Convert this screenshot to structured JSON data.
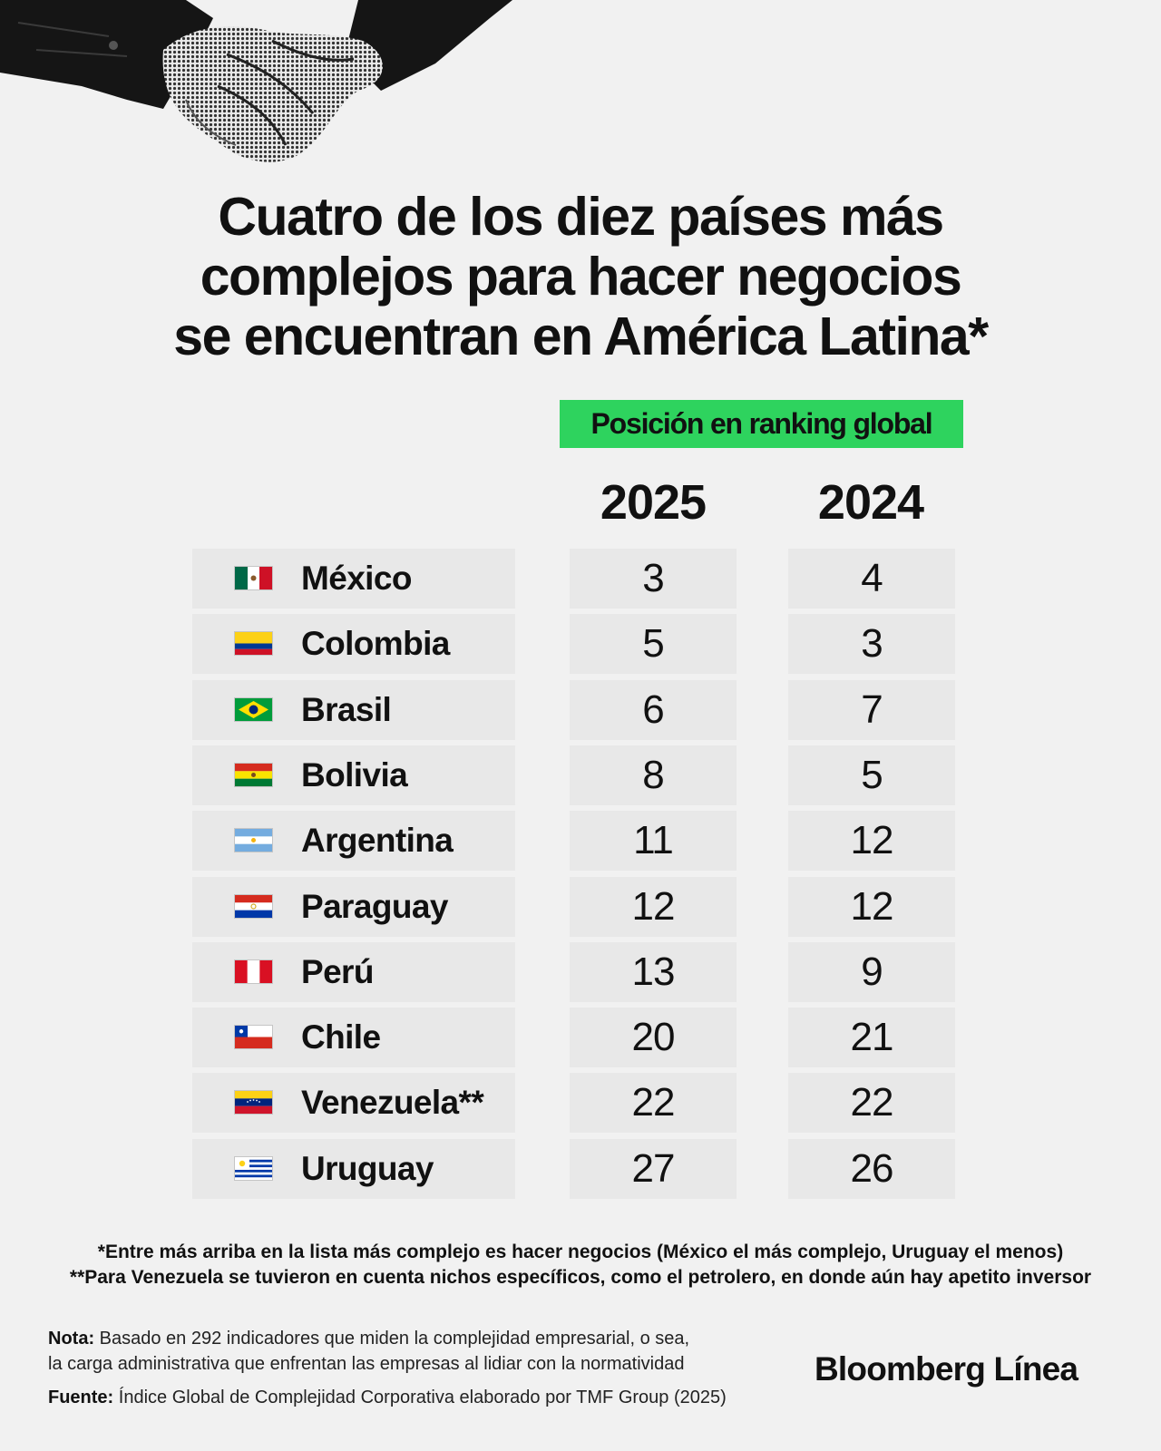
{
  "title_lines": [
    "Cuatro de los diez países más",
    "complejos para hacer negocios",
    "se encuentran en América Latina*"
  ],
  "ranking_label": "Posición en ranking global",
  "years": [
    "2025",
    "2024"
  ],
  "chart_data": {
    "type": "table",
    "title": "Cuatro de los diez países más complejos para hacer negocios se encuentran en América Latina*",
    "header": "Posición en ranking global",
    "columns": [
      "2025",
      "2024"
    ],
    "rows": [
      {
        "country": "México",
        "flag": "mexico-flag",
        "values": [
          3,
          4
        ]
      },
      {
        "country": "Colombia",
        "flag": "colombia-flag",
        "values": [
          5,
          3
        ]
      },
      {
        "country": "Brasil",
        "flag": "brazil-flag",
        "values": [
          6,
          7
        ]
      },
      {
        "country": "Bolivia",
        "flag": "bolivia-flag",
        "values": [
          8,
          5
        ]
      },
      {
        "country": "Argentina",
        "flag": "argentina-flag",
        "values": [
          11,
          12
        ]
      },
      {
        "country": "Paraguay",
        "flag": "paraguay-flag",
        "values": [
          12,
          12
        ]
      },
      {
        "country": "Perú",
        "flag": "peru-flag",
        "values": [
          13,
          9
        ]
      },
      {
        "country": "Chile",
        "flag": "chile-flag",
        "values": [
          20,
          21
        ]
      },
      {
        "country": "Venezuela**",
        "flag": "venezuela-flag",
        "values": [
          22,
          22
        ]
      },
      {
        "country": "Uruguay",
        "flag": "uruguay-flag",
        "values": [
          27,
          26
        ]
      }
    ]
  },
  "footnotes": [
    "*Entre más arriba en la lista más complejo es hacer negocios (México el más complejo, Uruguay el menos)",
    "**Para Venezuela se tuvieron en cuenta nichos específicos, como el petrolero, en donde aún hay apetito inversor"
  ],
  "note": {
    "label": "Nota:",
    "lines": [
      "Basado en 292 indicadores que miden la complejidad empresarial, o sea,",
      "la carga administrativa que enfrentan las empresas al lidiar con la normatividad"
    ]
  },
  "source": {
    "label": "Fuente:",
    "text": "Índice Global de Complejidad Corporativa elaborado por TMF Group (2025)"
  },
  "brand": "Bloomberg Línea",
  "illustration": "handshake-icon",
  "colors": {
    "background": "#f1f1f1",
    "badge": "#2ed35e",
    "cell": "#e8e8e8",
    "text": "#111111"
  }
}
